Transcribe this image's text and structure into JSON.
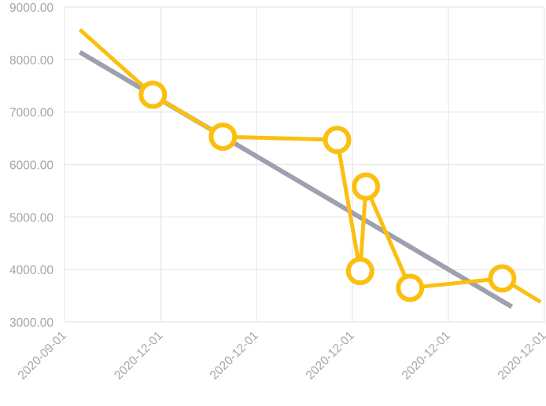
{
  "chart_data": {
    "type": "line",
    "title": "",
    "xlabel": "",
    "ylabel": "",
    "x_tick_labels": [
      "2020-09-01",
      "2020-12-01",
      "2020-12-01",
      "2020-12-01",
      "2020-12-01",
      "2020-12-01"
    ],
    "y_tick_labels": [
      "3000.00",
      "4000.00",
      "5000.00",
      "6000.00",
      "7000.00",
      "8000.00",
      "9000.00"
    ],
    "y_ticks": [
      3000,
      4000,
      5000,
      6000,
      7000,
      8000,
      9000
    ],
    "ylim": [
      3000,
      9000
    ],
    "x_range_note": "x axis spans 2020-09-01 through six equally spaced ticks, each labelled as printed",
    "xlim": [
      0,
      5
    ],
    "grid": true,
    "colors": {
      "series": "#fbbf0f",
      "trend": "#9ea0b0",
      "grid": "#e6e6e6",
      "tick_text": "#a6a6a6"
    },
    "series": [
      {
        "kind": "line-with-markers",
        "x": [
          0.16,
          0.92,
          1.65,
          2.84,
          3.08,
          3.14,
          3.6,
          4.56,
          4.96
        ],
        "y": [
          8570,
          7330,
          6530,
          6470,
          3970,
          5580,
          3650,
          3830,
          3380
        ],
        "markers": [
          false,
          true,
          true,
          true,
          true,
          true,
          true,
          true,
          false
        ]
      },
      {
        "kind": "trend",
        "x": [
          0.16,
          4.66
        ],
        "y": [
          8140,
          3290
        ]
      }
    ]
  }
}
